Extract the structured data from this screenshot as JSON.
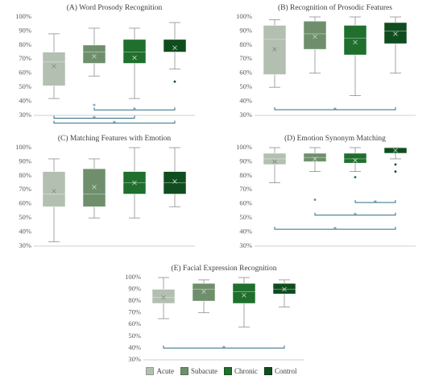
{
  "colors": {
    "Acute": "#b3c0b1",
    "Subacute": "#6f8f6c",
    "Chronic": "#1f6f2d",
    "Control": "#0f4d1e",
    "bracket": "#2e6c86"
  },
  "chart_data": [
    {
      "type": "box",
      "title": "(A) Word Prosody Recognition",
      "ylim": [
        0.3,
        1.0
      ],
      "yticks": [
        "30%",
        "40%",
        "50%",
        "60%",
        "70%",
        "80%",
        "90%",
        "100%"
      ],
      "series": [
        {
          "name": "Acute",
          "min": 0.42,
          "q1": 0.51,
          "median": 0.68,
          "q3": 0.75,
          "max": 0.88,
          "mean": 0.65,
          "outliers": []
        },
        {
          "name": "Subacute",
          "min": 0.58,
          "q1": 0.67,
          "median": 0.75,
          "q3": 0.8,
          "max": 0.92,
          "mean": 0.72,
          "outliers": []
        },
        {
          "name": "Chronic",
          "min": 0.42,
          "q1": 0.67,
          "median": 0.75,
          "q3": 0.84,
          "max": 0.92,
          "mean": 0.71,
          "outliers": []
        },
        {
          "name": "Control",
          "min": 0.63,
          "q1": 0.75,
          "median": 0.75,
          "q3": 0.84,
          "max": 0.96,
          "mean": 0.78,
          "outliers": [
            0.54
          ]
        }
      ],
      "significance": [
        {
          "from": 1,
          "to": 3,
          "y": 0.339,
          "label": "*"
        },
        {
          "from": 0,
          "to": 2,
          "y": 0.28,
          "label": "*"
        },
        {
          "from": 0,
          "to": 3,
          "y": 0.245,
          "label": "*"
        },
        {
          "from": 1,
          "to": 1,
          "y": 0.37,
          "label": "*",
          "single": true
        }
      ]
    },
    {
      "type": "box",
      "title": "(B) Recognition of Prosodic Features",
      "ylim": [
        0.3,
        1.0
      ],
      "yticks": [
        "30%",
        "40%",
        "50%",
        "60%",
        "70%",
        "80%",
        "90%",
        "100%"
      ],
      "series": [
        {
          "name": "Acute",
          "min": 0.5,
          "q1": 0.59,
          "median": 0.84,
          "q3": 0.94,
          "max": 0.98,
          "mean": 0.77,
          "outliers": []
        },
        {
          "name": "Subacute",
          "min": 0.6,
          "q1": 0.77,
          "median": 0.88,
          "q3": 0.97,
          "max": 1.0,
          "mean": 0.86,
          "outliers": []
        },
        {
          "name": "Chronic",
          "min": 0.44,
          "q1": 0.73,
          "median": 0.85,
          "q3": 0.94,
          "max": 1.0,
          "mean": 0.82,
          "outliers": []
        },
        {
          "name": "Control",
          "min": 0.6,
          "q1": 0.81,
          "median": 0.9,
          "q3": 0.96,
          "max": 1.0,
          "mean": 0.88,
          "outliers": []
        }
      ],
      "significance": [
        {
          "from": 0,
          "to": 3,
          "y": 0.34,
          "label": "*"
        }
      ]
    },
    {
      "type": "box",
      "title": "(C) Matching Features with Emotion",
      "ylim": [
        0.3,
        1.0
      ],
      "yticks": [
        "30%",
        "40%",
        "50%",
        "60%",
        "70%",
        "80%",
        "90%",
        "100%"
      ],
      "series": [
        {
          "name": "Acute",
          "min": 0.33,
          "q1": 0.58,
          "median": 0.67,
          "q3": 0.83,
          "max": 0.92,
          "mean": 0.69,
          "outliers": []
        },
        {
          "name": "Subacute",
          "min": 0.5,
          "q1": 0.58,
          "median": 0.67,
          "q3": 0.85,
          "max": 0.92,
          "mean": 0.72,
          "outliers": []
        },
        {
          "name": "Chronic",
          "min": 0.5,
          "q1": 0.67,
          "median": 0.75,
          "q3": 0.83,
          "max": 1.0,
          "mean": 0.75,
          "outliers": []
        },
        {
          "name": "Control",
          "min": 0.58,
          "q1": 0.67,
          "median": 0.75,
          "q3": 0.83,
          "max": 1.0,
          "mean": 0.76,
          "outliers": []
        }
      ],
      "significance": []
    },
    {
      "type": "box",
      "title": "(D) Emotion Synonym Matching",
      "ylim": [
        0.3,
        1.0
      ],
      "yticks": [
        "30%",
        "40%",
        "50%",
        "60%",
        "70%",
        "80%",
        "90%",
        "100%"
      ],
      "series": [
        {
          "name": "Acute",
          "min": 0.75,
          "q1": 0.88,
          "median": 0.92,
          "q3": 0.96,
          "max": 1.0,
          "mean": 0.9,
          "outliers": []
        },
        {
          "name": "Subacute",
          "min": 0.83,
          "q1": 0.9,
          "median": 0.93,
          "q3": 0.96,
          "max": 1.0,
          "mean": 0.92,
          "outliers": [
            0.63
          ]
        },
        {
          "name": "Chronic",
          "min": 0.83,
          "q1": 0.89,
          "median": 0.92,
          "q3": 0.96,
          "max": 1.0,
          "mean": 0.91,
          "outliers": [
            0.79
          ]
        },
        {
          "name": "Control",
          "min": 0.92,
          "q1": 0.96,
          "median": 1.0,
          "q3": 1.0,
          "max": 1.0,
          "mean": 0.98,
          "outliers": [
            0.88,
            0.83
          ]
        }
      ],
      "significance": [
        {
          "from": 2,
          "to": 3,
          "y": 0.61,
          "label": "*"
        },
        {
          "from": 1,
          "to": 3,
          "y": 0.52,
          "label": "*"
        },
        {
          "from": 0,
          "to": 3,
          "y": 0.42,
          "label": "*"
        }
      ]
    },
    {
      "type": "box",
      "title": "(E) Facial Expression Recognition",
      "ylim": [
        0.3,
        1.0
      ],
      "yticks": [
        "30%",
        "40%",
        "50%",
        "60%",
        "70%",
        "80%",
        "90%",
        "100%"
      ],
      "series": [
        {
          "name": "Acute",
          "min": 0.65,
          "q1": 0.78,
          "median": 0.83,
          "q3": 0.9,
          "max": 1.0,
          "mean": 0.83,
          "outliers": []
        },
        {
          "name": "Subacute",
          "min": 0.7,
          "q1": 0.8,
          "median": 0.9,
          "q3": 0.95,
          "max": 0.98,
          "mean": 0.88,
          "outliers": []
        },
        {
          "name": "Chronic",
          "min": 0.58,
          "q1": 0.78,
          "median": 0.88,
          "q3": 0.95,
          "max": 1.0,
          "mean": 0.85,
          "outliers": []
        },
        {
          "name": "Control",
          "min": 0.75,
          "q1": 0.86,
          "median": 0.9,
          "q3": 0.95,
          "max": 0.98,
          "mean": 0.9,
          "outliers": []
        }
      ],
      "significance": [
        {
          "from": 0,
          "to": 3,
          "y": 0.4,
          "label": "*"
        }
      ]
    }
  ],
  "legend": {
    "items": [
      "Acute",
      "Subacute",
      "Chronic",
      "Control"
    ]
  }
}
